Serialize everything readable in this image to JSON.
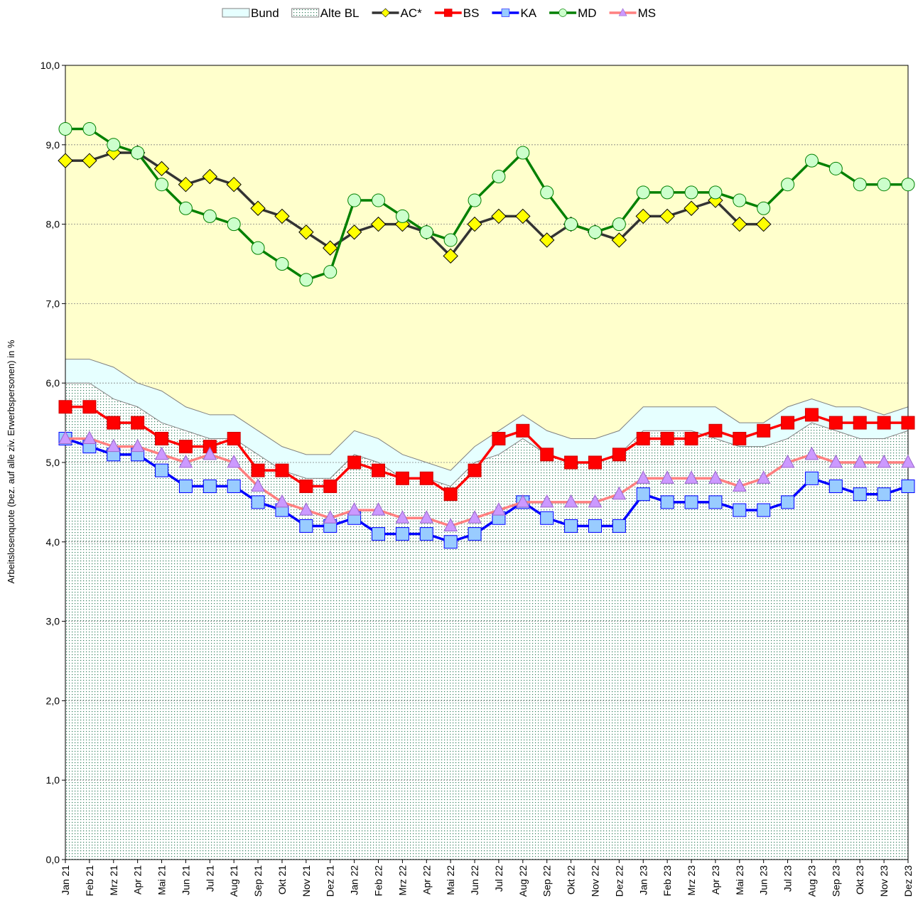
{
  "chart_data": {
    "type": "line",
    "y_label": "Arbeitslosenquote (bez. auf alle ziv. Erwerbspersonen) in %",
    "categories": [
      "Jan 21",
      "Feb 21",
      "Mrz 21",
      "Apr 21",
      "Mai 21",
      "Jun 21",
      "Jul 21",
      "Aug 21",
      "Sep 21",
      "Okt 21",
      "Nov 21",
      "Dez 21",
      "Jan 22",
      "Feb 22",
      "Mrz 22",
      "Apr 22",
      "Mai 22",
      "Jun 22",
      "Jul 22",
      "Aug 22",
      "Sep 22",
      "Okt 22",
      "Nov 22",
      "Dez 22",
      "Jan 23",
      "Feb 23",
      "Mrz 23",
      "Apr 23",
      "Mai 23",
      "Jun 23",
      "Jul 23",
      "Aug 23",
      "Sep 23",
      "Okt 23",
      "Nov 23",
      "Dez 23"
    ],
    "ylim": [
      0,
      10
    ],
    "yticks": [
      {
        "value": 0,
        "label": "0,0"
      },
      {
        "value": 1,
        "label": "1,0"
      },
      {
        "value": 2,
        "label": "2,0"
      },
      {
        "value": 3,
        "label": "3,0"
      },
      {
        "value": 4,
        "label": "4,0"
      },
      {
        "value": 5,
        "label": "5,0"
      },
      {
        "value": 6,
        "label": "6,0"
      },
      {
        "value": 7,
        "label": "7,0"
      },
      {
        "value": 8,
        "label": "8,0"
      },
      {
        "value": 9,
        "label": "9,0"
      },
      {
        "value": 10,
        "label": "10,0"
      }
    ],
    "grid": true,
    "background": "#ffffcc",
    "legend": "top",
    "series": [
      {
        "name": "Bund",
        "style": "area",
        "color": "#e6ffff",
        "values": [
          6.3,
          6.3,
          6.2,
          6.0,
          5.9,
          5.7,
          5.6,
          5.6,
          5.4,
          5.2,
          5.1,
          5.1,
          5.4,
          5.3,
          5.1,
          5.0,
          4.9,
          5.2,
          5.4,
          5.6,
          5.4,
          5.3,
          5.3,
          5.4,
          5.7,
          5.7,
          5.7,
          5.7,
          5.5,
          5.5,
          5.7,
          5.8,
          5.7,
          5.7,
          5.6,
          5.7
        ]
      },
      {
        "name": "Alte BL",
        "style": "dotted-area",
        "color": "#2e7d5b",
        "values": [
          6.0,
          6.0,
          5.8,
          5.7,
          5.5,
          5.4,
          5.3,
          5.3,
          5.1,
          4.9,
          4.8,
          4.8,
          5.1,
          5.0,
          4.8,
          4.8,
          4.7,
          5.0,
          5.1,
          5.3,
          5.1,
          5.0,
          5.0,
          5.1,
          5.4,
          5.4,
          5.4,
          5.3,
          5.2,
          5.2,
          5.3,
          5.5,
          5.4,
          5.3,
          5.3,
          5.4
        ]
      },
      {
        "name": "AC*",
        "style": "line",
        "color": "#333333",
        "marker": "diamond",
        "marker_color": "#ffff00",
        "values": [
          8.8,
          8.8,
          8.9,
          8.9,
          8.7,
          8.5,
          8.6,
          8.5,
          8.2,
          8.1,
          7.9,
          7.7,
          7.9,
          8.0,
          8.0,
          7.9,
          7.6,
          8.0,
          8.1,
          8.1,
          7.8,
          8.0,
          7.9,
          7.8,
          8.1,
          8.1,
          8.2,
          8.3,
          8.0,
          8.0,
          null,
          null,
          null,
          null,
          null,
          null
        ]
      },
      {
        "name": "BS",
        "style": "line",
        "color": "#ff0000",
        "marker": "square",
        "marker_color": "#ff0000",
        "values": [
          5.7,
          5.7,
          5.5,
          5.5,
          5.3,
          5.2,
          5.2,
          5.3,
          4.9,
          4.9,
          4.7,
          4.7,
          5.0,
          4.9,
          4.8,
          4.8,
          4.6,
          4.9,
          5.3,
          5.4,
          5.1,
          5.0,
          5.0,
          5.1,
          5.3,
          5.3,
          5.3,
          5.4,
          5.3,
          5.4,
          5.5,
          5.6,
          5.5,
          5.5,
          5.5,
          5.5
        ]
      },
      {
        "name": "KA",
        "style": "line",
        "color": "#0000ff",
        "marker": "square",
        "marker_color": "#99ccff",
        "values": [
          5.3,
          5.2,
          5.1,
          5.1,
          4.9,
          4.7,
          4.7,
          4.7,
          4.5,
          4.4,
          4.2,
          4.2,
          4.3,
          4.1,
          4.1,
          4.1,
          4.0,
          4.1,
          4.3,
          4.5,
          4.3,
          4.2,
          4.2,
          4.2,
          4.6,
          4.5,
          4.5,
          4.5,
          4.4,
          4.4,
          4.5,
          4.8,
          4.7,
          4.6,
          4.6,
          4.7
        ]
      },
      {
        "name": "MD",
        "style": "line",
        "color": "#008000",
        "marker": "circle",
        "marker_color": "#ccffcc",
        "values": [
          9.2,
          9.2,
          9.0,
          8.9,
          8.5,
          8.2,
          8.1,
          8.0,
          7.7,
          7.5,
          7.3,
          7.4,
          8.3,
          8.3,
          8.1,
          7.9,
          7.8,
          8.3,
          8.6,
          8.9,
          8.4,
          8.0,
          7.9,
          8.0,
          8.4,
          8.4,
          8.4,
          8.4,
          8.3,
          8.2,
          8.5,
          8.8,
          8.7,
          8.5,
          8.5,
          8.5
        ]
      },
      {
        "name": "MS",
        "style": "line",
        "color": "#ff8080",
        "marker": "triangle",
        "marker_color": "#cc99ff",
        "values": [
          5.3,
          5.3,
          5.2,
          5.2,
          5.1,
          5.0,
          5.1,
          5.0,
          4.7,
          4.5,
          4.4,
          4.3,
          4.4,
          4.4,
          4.3,
          4.3,
          4.2,
          4.3,
          4.4,
          4.5,
          4.5,
          4.5,
          4.5,
          4.6,
          4.8,
          4.8,
          4.8,
          4.8,
          4.7,
          4.8,
          5.0,
          5.1,
          5.0,
          5.0,
          5.0,
          5.0
        ]
      }
    ]
  }
}
